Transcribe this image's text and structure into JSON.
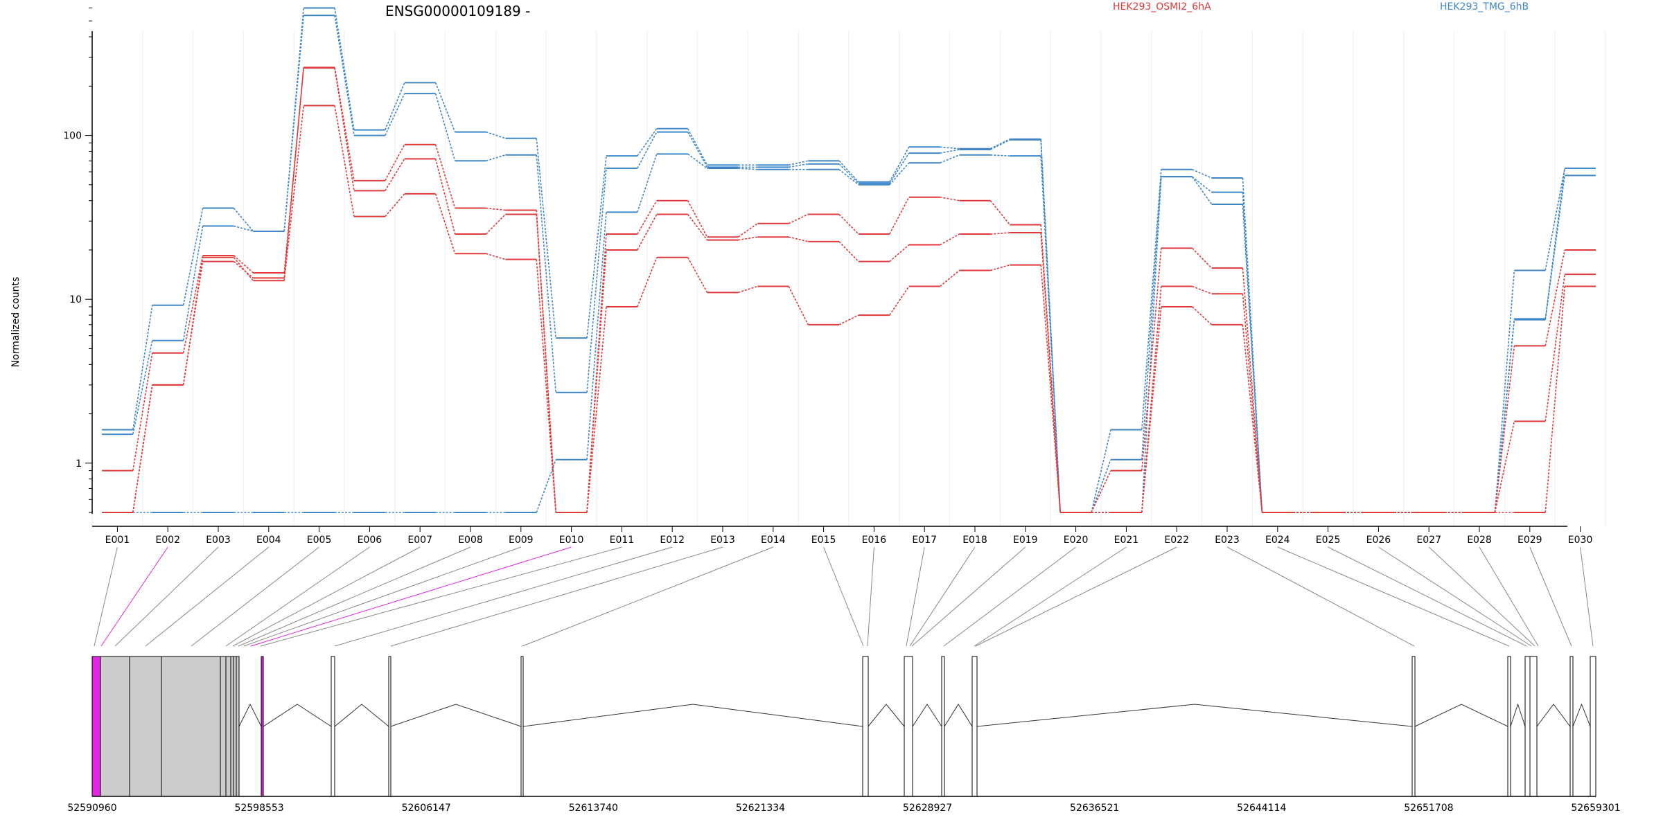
{
  "chart_data": {
    "type": "line",
    "title": "ENSG00000109189 -",
    "ylabel": "Normalized counts",
    "yscale": "log",
    "yticks": [
      1,
      10,
      100
    ],
    "ytick_labels": [
      "1",
      "10",
      "100"
    ],
    "colors": {
      "osmi": "#e0393a",
      "tmg": "#3f86c8",
      "highlight": "#e028e0",
      "model": "#cccccc"
    },
    "categories": [
      "E001",
      "E002",
      "E003",
      "E004",
      "E005",
      "E006",
      "E007",
      "E008",
      "E009",
      "E010",
      "E011",
      "E012",
      "E013",
      "E014",
      "E015",
      "E016",
      "E017",
      "E018",
      "E019",
      "E020",
      "E021",
      "E022",
      "E023",
      "E024",
      "E025",
      "E026",
      "E027",
      "E028",
      "E029",
      "E030"
    ],
    "highlight_exons": [
      "E002",
      "E010"
    ],
    "legend": [
      {
        "label": "HEK293_OSMI2_6hA",
        "color": "#e0393a"
      },
      {
        "label": "HEK293_TMG_6hB",
        "color": "#3f86c8"
      }
    ],
    "series": [
      {
        "group": "TMG",
        "values": [
          1.6,
          9.2,
          36,
          26,
          600,
          108,
          210,
          105,
          96,
          5.8,
          75,
          110,
          66,
          66,
          70,
          52,
          85,
          83,
          95,
          0.5,
          1.6,
          62,
          55,
          0.5,
          0.5,
          0.5,
          0.5,
          0.5,
          15,
          63
        ]
      },
      {
        "group": "TMG",
        "values": [
          1.5,
          5.6,
          28,
          26,
          540,
          100,
          180,
          70,
          76,
          2.7,
          63,
          105,
          64,
          64,
          67,
          51,
          78,
          82,
          94,
          0.5,
          1.05,
          56,
          45,
          0.5,
          0.5,
          0.5,
          0.5,
          0.5,
          7.6,
          63
        ]
      },
      {
        "group": "TMG",
        "values": [
          0.5,
          0.5,
          0.5,
          0.5,
          0.5,
          0.5,
          0.5,
          0.5,
          0.5,
          1.05,
          34,
          77,
          63,
          62,
          62,
          50,
          68,
          76,
          75,
          0.5,
          0.5,
          56,
          38,
          0.5,
          0.5,
          0.5,
          0.5,
          0.5,
          7.5,
          57
        ]
      },
      {
        "group": "OSMI",
        "values": [
          0.9,
          4.7,
          18.5,
          14.5,
          260,
          53,
          88,
          36,
          35,
          0.5,
          25,
          40,
          24,
          29,
          33,
          25,
          42,
          40,
          28.5,
          0.5,
          0.9,
          20.5,
          15.5,
          0.5,
          0.5,
          0.5,
          0.5,
          0.5,
          5.2,
          20
        ]
      },
      {
        "group": "OSMI",
        "values": [
          0.5,
          3.0,
          17,
          13.5,
          258,
          46,
          72,
          25,
          33,
          0.5,
          20,
          33,
          23,
          24,
          22.5,
          17,
          21.5,
          25,
          25.5,
          0.5,
          0.5,
          12,
          10.8,
          0.5,
          0.5,
          0.5,
          0.5,
          0.5,
          1.8,
          14.2
        ]
      },
      {
        "group": "OSMI",
        "values": [
          0.5,
          3.0,
          18,
          13,
          152,
          32,
          44,
          19,
          17.5,
          0.5,
          9,
          18,
          11,
          12,
          7,
          8,
          12,
          15,
          16.2,
          0.5,
          0.5,
          9,
          7,
          0.5,
          0.5,
          0.5,
          0.5,
          0.5,
          0.5,
          12
        ]
      }
    ],
    "genome": {
      "tick_labels": [
        "52590960",
        "52598553",
        "52606147",
        "52613740",
        "52621334",
        "52628927",
        "52636521",
        "52644114",
        "52651708",
        "52659301"
      ],
      "start": 52590960,
      "end": 52659301
    }
  }
}
